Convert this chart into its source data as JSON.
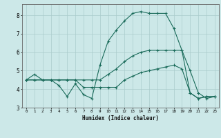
{
  "xlabel": "Humidex (Indice chaleur)",
  "xlim": [
    -0.5,
    23.5
  ],
  "ylim": [
    3,
    8.6
  ],
  "yticks": [
    3,
    4,
    5,
    6,
    7,
    8
  ],
  "xticks": [
    0,
    1,
    2,
    3,
    4,
    5,
    6,
    7,
    8,
    9,
    10,
    11,
    12,
    13,
    14,
    15,
    16,
    17,
    18,
    19,
    20,
    21,
    22,
    23
  ],
  "bg_color": "#cce8e8",
  "line_color": "#1a6b5a",
  "grid_color": "#aacccc",
  "series": [
    [
      4.5,
      4.8,
      4.5,
      4.5,
      4.2,
      3.6,
      4.3,
      3.7,
      3.5,
      5.3,
      6.6,
      7.2,
      7.7,
      8.1,
      8.2,
      8.1,
      8.1,
      8.1,
      7.3,
      6.1,
      3.8,
      3.5,
      3.6,
      3.6
    ],
    [
      4.5,
      4.5,
      4.5,
      4.5,
      4.5,
      4.5,
      4.5,
      4.1,
      4.1,
      4.1,
      4.1,
      4.1,
      4.5,
      4.7,
      4.9,
      5.0,
      5.1,
      5.2,
      5.3,
      5.1,
      3.8,
      3.5,
      3.6,
      3.6
    ],
    [
      4.5,
      4.5,
      4.5,
      4.5,
      4.5,
      4.5,
      4.5,
      4.5,
      4.5,
      4.5,
      4.8,
      5.1,
      5.5,
      5.8,
      6.0,
      6.1,
      6.1,
      6.1,
      6.1,
      6.1,
      5.0,
      3.8,
      3.5,
      3.6
    ]
  ]
}
